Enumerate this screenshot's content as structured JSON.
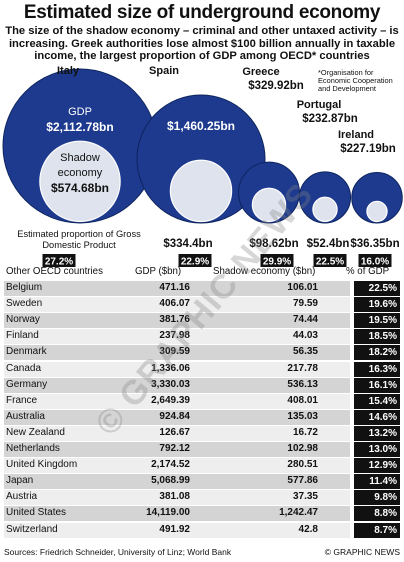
{
  "title": "Estimated size of underground economy",
  "subtitle": "The size of the shadow economy – criminal and other untaxed activity – is increasing. Greek authorities lose almost $100 billion annually in taxable income, the largest proportion of GDP among OECD* countries",
  "footnote": "*Organisation for Economic Cooperation and Development",
  "estimated_label": "Estimated proportion of Gross Domestic Product",
  "gdp_word": "GDP",
  "shadow_word": "Shadow economy",
  "colors": {
    "navy": "#1d3a8f",
    "inner": "#dfe3ee",
    "pct_box": "#111111"
  },
  "chart_data": [
    {
      "type": "bubble",
      "countries": [
        {
          "name": "Italy",
          "gdp": "$2,112.78bn",
          "gdp_value": 2112.78,
          "shadow": "$574.68bn",
          "shadow_value": 574.68,
          "pct": "27.2%"
        },
        {
          "name": "Spain",
          "gdp": "$1,460.25bn",
          "gdp_value": 1460.25,
          "shadow": "$334.4bn",
          "shadow_value": 334.4,
          "pct": "22.9%"
        },
        {
          "name": "Greece",
          "gdp": "$329.92bn",
          "gdp_value": 329.92,
          "shadow": "$98.62bn",
          "shadow_value": 98.62,
          "pct": "29.9%"
        },
        {
          "name": "Portugal",
          "gdp": "$232.87bn",
          "gdp_value": 232.87,
          "shadow": "$52.4bn",
          "shadow_value": 52.4,
          "pct": "22.5%"
        },
        {
          "name": "Ireland",
          "gdp": "$227.19bn",
          "gdp_value": 227.19,
          "shadow": "$36.35bn",
          "shadow_value": 36.35,
          "pct": "16.0%"
        }
      ]
    },
    {
      "type": "table",
      "columns": [
        "Other OECD countries",
        "GDP ($bn)",
        "Shadow economy ($bn)",
        "% of GDP"
      ],
      "rows": [
        [
          "Belgium",
          "471.16",
          "106.01",
          "22.5%"
        ],
        [
          "Sweden",
          "406.07",
          "79.59",
          "19.6%"
        ],
        [
          "Norway",
          "381.76",
          "74.44",
          "19.5%"
        ],
        [
          "Finland",
          "237.98",
          "44.03",
          "18.5%"
        ],
        [
          "Denmark",
          "309.59",
          "56.35",
          "18.2%"
        ],
        [
          "Canada",
          "1,336.06",
          "217.78",
          "16.3%"
        ],
        [
          "Germany",
          "3,330.03",
          "536.13",
          "16.1%"
        ],
        [
          "France",
          "2,649.39",
          "408.01",
          "15.4%"
        ],
        [
          "Australia",
          "924.84",
          "135.03",
          "14.6%"
        ],
        [
          "New Zealand",
          "126.67",
          "16.72",
          "13.2%"
        ],
        [
          "Netherlands",
          "792.12",
          "102.98",
          "13.0%"
        ],
        [
          "United Kingdom",
          "2,174.52",
          "280.51",
          "12.9%"
        ],
        [
          "Japan",
          "5,068.99",
          "577.86",
          "11.4%"
        ],
        [
          "Austria",
          "381.08",
          "37.35",
          "9.8%"
        ],
        [
          "United States",
          "14,119.00",
          "1,242.47",
          "8.8%"
        ],
        [
          "Switzerland",
          "491.92",
          "42.8",
          "8.7%"
        ]
      ]
    }
  ],
  "sources": "Sources: Friedrich Schneider, University of Linz; World Bank",
  "brand": "© GRAPHIC NEWS",
  "watermark": "© GRAPHIC NEWS"
}
